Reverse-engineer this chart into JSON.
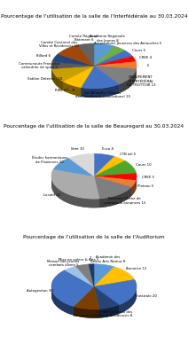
{
  "chart1": {
    "title": "Pourcentage de l'utilisation de la salle de l'Interfédérale au 30.03.2024",
    "slices": [
      {
        "label": "Académie Régionale\ndes Jeunes 8",
        "value": 8,
        "color": "#5B9BD5"
      },
      {
        "label": "Associations Jeunesse des Amauches 5",
        "value": 5,
        "color": "#70AD47"
      },
      {
        "label": "Cours 5",
        "value": 5,
        "color": "#4472C4"
      },
      {
        "label": "CREE 4",
        "value": 4,
        "color": "#FF0000"
      },
      {
        "label": "5",
        "value": 5,
        "color": "#ED7D31"
      },
      {
        "label": "GROUPEMENT\nINTERFÉDÉRAL\nDE TROTTOIR 13",
        "value": 13,
        "color": "#808080"
      },
      {
        "label": "Les Billard(s) (Chiens\ndes Batailles & associations) 15",
        "value": 15,
        "color": "#4472C4"
      },
      {
        "label": "RIRE ET... 8",
        "value": 8,
        "color": "#FFC000"
      },
      {
        "label": "Sablon Détente - 10",
        "value": 10,
        "color": "#C8A000"
      },
      {
        "label": "Communauté Française\ncalendrier de sport 5",
        "value": 5,
        "color": "#595959"
      },
      {
        "label": "Billard 6",
        "value": 6,
        "color": "#264478"
      },
      {
        "label": "Comité Cantonal des\nVilles et Résidences 10",
        "value": 10,
        "color": "#9E480E"
      },
      {
        "label": "Comité Régional\nBâtiment 6",
        "value": 6,
        "color": "#636363"
      }
    ],
    "startangle": 90
  },
  "chart2": {
    "title": "Pourcentage de l'utilisation de la salle de Beauregard au 30.03.2024",
    "slices": [
      {
        "label": "Ecco 8",
        "value": 8,
        "color": "#4472C4"
      },
      {
        "label": "CTB asl 5",
        "value": 5,
        "color": "#FFC000"
      },
      {
        "label": "Cours 10",
        "value": 10,
        "color": "#4EA72A"
      },
      {
        "label": "CREE 5",
        "value": 5,
        "color": "#FF0000"
      },
      {
        "label": "Plateau 5",
        "value": 5,
        "color": "#ED7D31"
      },
      {
        "label": "Réclame Chêne de\ncombats & annonces 15",
        "value": 15,
        "color": "#7F7F7F"
      },
      {
        "label": "Locatif 32",
        "value": 32,
        "color": "#ABABAB"
      },
      {
        "label": "Études harmoniques\nde Flawinnes 10",
        "value": 10,
        "color": "#5B9BD5"
      },
      {
        "label": "libre 10",
        "value": 10,
        "color": "#D9D9D9"
      }
    ],
    "startangle": 90
  },
  "chart3": {
    "title": "Pourcentage de l'utilisation de la salle de l'Auditorium",
    "slices": [
      {
        "label": "Académie des\nBeaux Arts Namur 8",
        "value": 8,
        "color": "#5B9BD5"
      },
      {
        "label": "Annonce 12",
        "value": 12,
        "color": "#FFC000"
      },
      {
        "label": "Théâtrale 20",
        "value": 20,
        "color": "#4472C4"
      },
      {
        "label": "Comité Cantonal des\nVilles et Résidences 8",
        "value": 8,
        "color": "#264478"
      },
      {
        "label": "Artisanat 10",
        "value": 10,
        "color": "#7B3F00"
      },
      {
        "label": "Autogestion 30",
        "value": 30,
        "color": "#4472C4"
      },
      {
        "label": "Maison des Jeunes\ncombats divers 5",
        "value": 5,
        "color": "#9DC3E6"
      },
      {
        "label": "Mise en valeur & Arts 5",
        "value": 5,
        "color": "#808080"
      },
      {
        "label": "2",
        "value": 2,
        "color": "#1F3864"
      }
    ],
    "startangle": 90
  },
  "background_color": "#FFFFFF",
  "title_fontsize": 4.2,
  "label_fontsize": 2.8,
  "border_color": "#AAAAAA"
}
